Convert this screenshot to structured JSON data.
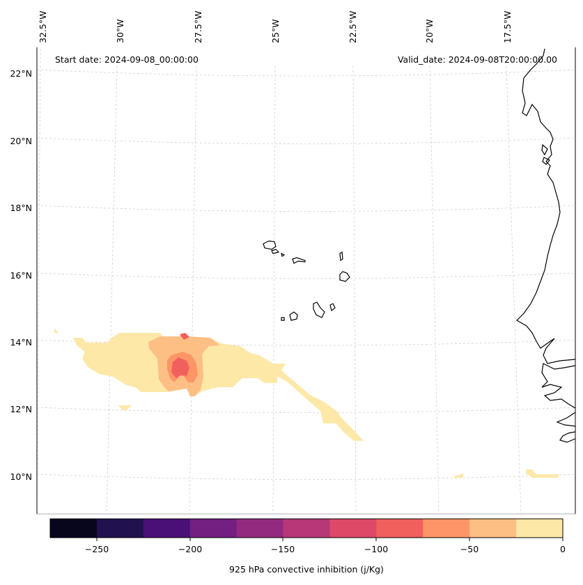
{
  "map": {
    "start_date_text": "Start date: 2024-09-08_00:00:00",
    "valid_date_text": "Valid_date: 2024-09-08T20:00:00.00",
    "lon_labels": [
      "32.5°W",
      "30°W",
      "27.5°W",
      "25°W",
      "22.5°W",
      "20°W",
      "17.5°W"
    ],
    "lat_labels": [
      "22°N",
      "20°N",
      "18°N",
      "16°N",
      "14°N",
      "12°N",
      "10°N"
    ],
    "gridlines": true
  },
  "colorbar": {
    "label": "925 hPa convective inhibition (j/Kg)",
    "ticks": [
      "−250",
      "−200",
      "−150",
      "−100",
      "−50",
      "0"
    ],
    "levels": [
      -275,
      -250,
      -225,
      -200,
      -175,
      -150,
      -125,
      -100,
      -75,
      -50,
      -25,
      0
    ],
    "colors": [
      "#08061d",
      "#21114e",
      "#4a1077",
      "#721f81",
      "#942a80",
      "#b73779",
      "#de4968",
      "#f1605d",
      "#fe9567",
      "#febf84",
      "#fde8a8"
    ]
  },
  "fill_colors": {
    "pale": "#fde8a8",
    "light_orange": "#febf84",
    "orange": "#fe9567",
    "red_orange": "#f1605d"
  }
}
